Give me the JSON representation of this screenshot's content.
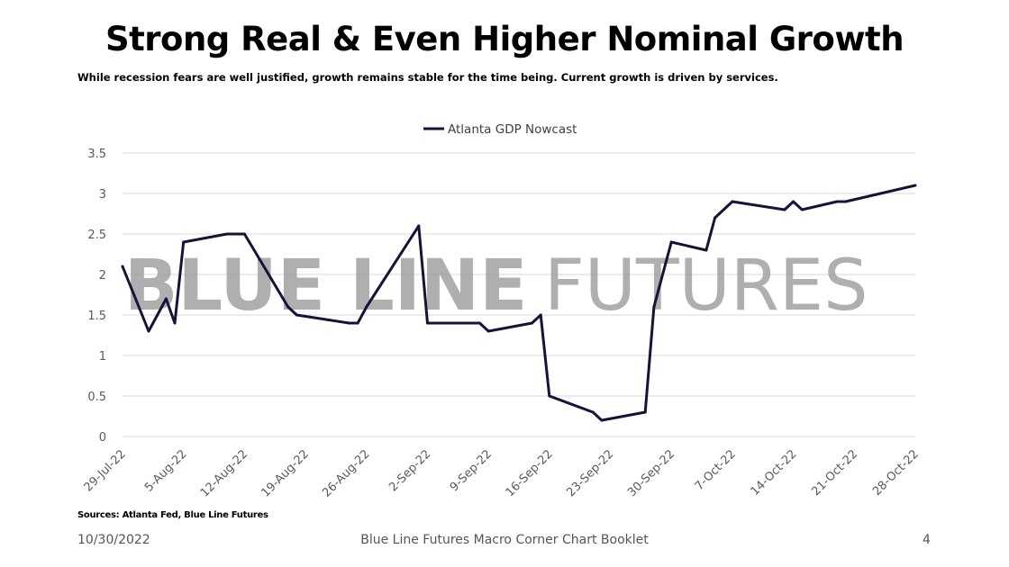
{
  "header": {
    "title": "Strong Real & Even Higher Nominal Growth",
    "subtitle": "While recession fears are well justified, growth remains stable for the time being. Current growth is driven by services."
  },
  "watermark": {
    "bold_text": "BLUE LINE",
    "light_text": "FUTURES"
  },
  "footer": {
    "source": "Sources: Atlanta Fed, Blue Line Futures",
    "date": "10/30/2022",
    "booklet": "Blue Line Futures Macro Corner Chart Booklet",
    "page": "4"
  },
  "chart_data": {
    "type": "line",
    "title": "",
    "xlabel": "",
    "ylabel": "",
    "ylim": [
      0,
      3.5
    ],
    "yticks": [
      "0",
      "0.5",
      "1",
      "1.5",
      "2",
      "2.5",
      "3",
      "3.5"
    ],
    "xlim": [
      "2022-07-29",
      "2022-10-28"
    ],
    "xticks": [
      "29-Jul-22",
      "5-Aug-22",
      "12-Aug-22",
      "19-Aug-22",
      "26-Aug-22",
      "2-Sep-22",
      "9-Sep-22",
      "16-Sep-22",
      "23-Sep-22",
      "30-Sep-22",
      "7-Oct-22",
      "14-Oct-22",
      "21-Oct-22",
      "28-Oct-22"
    ],
    "grid": true,
    "legend": "top-center",
    "line_color": "#141438",
    "series": [
      {
        "name": "Atlanta GDP Nowcast",
        "points": [
          [
            "2022-07-29",
            2.1
          ],
          [
            "2022-08-01",
            1.3
          ],
          [
            "2022-08-03",
            1.7
          ],
          [
            "2022-08-04",
            1.4
          ],
          [
            "2022-08-05",
            2.4
          ],
          [
            "2022-08-10",
            2.5
          ],
          [
            "2022-08-12",
            2.5
          ],
          [
            "2022-08-17",
            1.6
          ],
          [
            "2022-08-18",
            1.5
          ],
          [
            "2022-08-24",
            1.4
          ],
          [
            "2022-08-25",
            1.4
          ],
          [
            "2022-08-26",
            1.6
          ],
          [
            "2022-09-01",
            2.6
          ],
          [
            "2022-09-02",
            1.4
          ],
          [
            "2022-09-07",
            1.4
          ],
          [
            "2022-09-08",
            1.4
          ],
          [
            "2022-09-09",
            1.3
          ],
          [
            "2022-09-14",
            1.4
          ],
          [
            "2022-09-15",
            1.5
          ],
          [
            "2022-09-16",
            0.5
          ],
          [
            "2022-09-21",
            0.3
          ],
          [
            "2022-09-22",
            0.2
          ],
          [
            "2022-09-27",
            0.3
          ],
          [
            "2022-09-28",
            1.6
          ],
          [
            "2022-09-30",
            2.4
          ],
          [
            "2022-10-04",
            2.3
          ],
          [
            "2022-10-05",
            2.7
          ],
          [
            "2022-10-07",
            2.9
          ],
          [
            "2022-10-13",
            2.8
          ],
          [
            "2022-10-14",
            2.9
          ],
          [
            "2022-10-15",
            2.8
          ],
          [
            "2022-10-19",
            2.9
          ],
          [
            "2022-10-20",
            2.9
          ],
          [
            "2022-10-28",
            3.1
          ]
        ]
      }
    ]
  }
}
